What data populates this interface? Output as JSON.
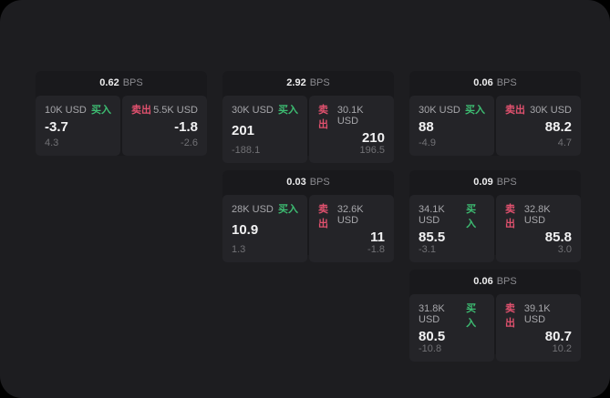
{
  "page": {
    "background_outer": "#000000",
    "background_surface": "#1d1d20"
  },
  "colors": {
    "buy_green": "#3dbd72",
    "sell_red": "#e0516e",
    "card_bg": "#19191c",
    "panel_bg": "#242428",
    "value_text": "#f2f2f3",
    "label_text": "#a6a6aa",
    "sub_text": "#717175"
  },
  "cards": [
    {
      "header": {
        "value": "0.62",
        "unit": "BPS"
      },
      "buy": {
        "amount": "10K USD",
        "side": "买入",
        "value": "-3.7",
        "sub": "4.3"
      },
      "sell": {
        "side": "卖出",
        "amount": "5.5K USD",
        "value": "-1.8",
        "sub": "-2.6"
      }
    },
    {
      "header": {
        "value": "2.92",
        "unit": "BPS"
      },
      "buy": {
        "amount": "30K USD",
        "side": "买入",
        "value": "201",
        "sub": "-188.1"
      },
      "sell": {
        "side": "卖出",
        "amount": "30.1K USD",
        "value": "210",
        "sub": "196.5"
      }
    },
    {
      "header": {
        "value": "0.06",
        "unit": "BPS"
      },
      "buy": {
        "amount": "30K USD",
        "side": "买入",
        "value": "88",
        "sub": "-4.9"
      },
      "sell": {
        "side": "卖出",
        "amount": "30K USD",
        "value": "88.2",
        "sub": "4.7"
      }
    },
    {
      "header": {
        "value": "0.03",
        "unit": "BPS"
      },
      "buy": {
        "amount": "28K USD",
        "side": "买入",
        "value": "10.9",
        "sub": "1.3"
      },
      "sell": {
        "side": "卖出",
        "amount": "32.6K USD",
        "value": "11",
        "sub": "-1.8"
      }
    },
    {
      "header": {
        "value": "0.09",
        "unit": "BPS"
      },
      "buy": {
        "amount": "34.1K USD",
        "side": "买入",
        "value": "85.5",
        "sub": "-3.1"
      },
      "sell": {
        "side": "卖出",
        "amount": "32.8K USD",
        "value": "85.8",
        "sub": "3.0"
      }
    },
    {
      "header": {
        "value": "0.06",
        "unit": "BPS"
      },
      "buy": {
        "amount": "31.8K USD",
        "side": "买入",
        "value": "80.5",
        "sub": "-10.8"
      },
      "sell": {
        "side": "卖出",
        "amount": "39.1K USD",
        "value": "80.7",
        "sub": "10.2"
      }
    }
  ]
}
